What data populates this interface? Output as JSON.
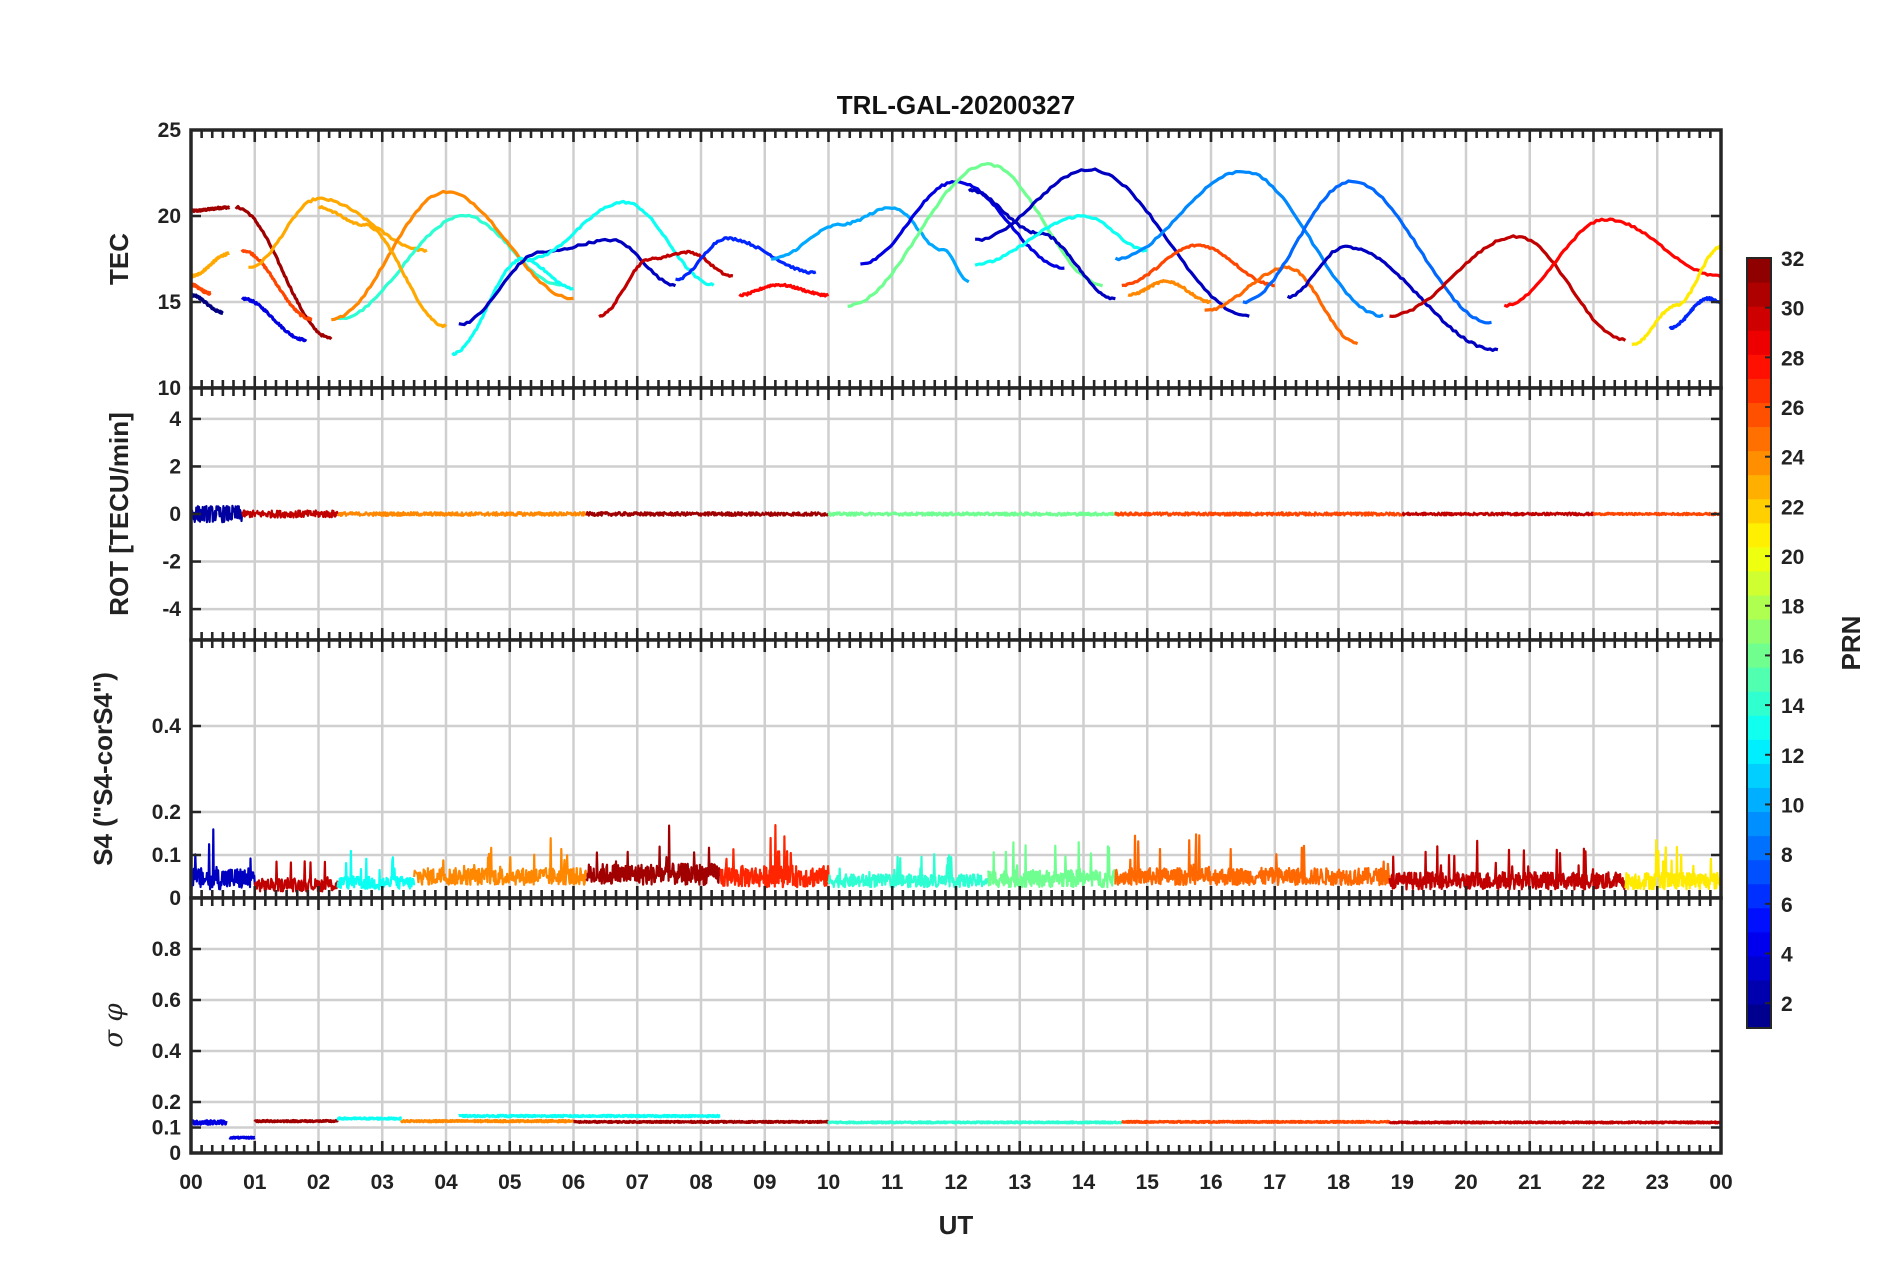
{
  "chart_data": {
    "type": "line",
    "title": "TRL-GAL-20200327",
    "xlabel": "UT",
    "x_ticks": [
      "00",
      "01",
      "02",
      "03",
      "04",
      "05",
      "06",
      "07",
      "08",
      "09",
      "10",
      "11",
      "12",
      "13",
      "14",
      "15",
      "16",
      "17",
      "18",
      "19",
      "20",
      "21",
      "22",
      "23",
      "00"
    ],
    "xlim": [
      0,
      24
    ],
    "grid": true,
    "colorbar": {
      "label": "PRN",
      "range": [
        1,
        32
      ],
      "ticks": [
        "2",
        "4",
        "6",
        "8",
        "10",
        "12",
        "14",
        "16",
        "18",
        "20",
        "22",
        "24",
        "26",
        "28",
        "30",
        "32"
      ],
      "colormap": "jet"
    },
    "panels": [
      {
        "name": "TEC",
        "ylabel": "TEC",
        "ylim": [
          10,
          25
        ],
        "y_ticks": [
          "10",
          "15",
          "20",
          "25"
        ],
        "style": "arc",
        "series": [
          {
            "prn": 31,
            "x": [
              0.0,
              0.6
            ],
            "y": [
              20.3,
              20.5
            ]
          },
          {
            "prn": 1,
            "x": [
              0.0,
              0.5
            ],
            "y": [
              15.4,
              14.4
            ]
          },
          {
            "prn": 26,
            "x": [
              0.0,
              0.3
            ],
            "y": [
              16.0,
              15.5
            ]
          },
          {
            "prn": 23,
            "x": [
              0.0,
              0.6
            ],
            "y": [
              16.5,
              17.8
            ]
          },
          {
            "prn": 4,
            "x": [
              0.8,
              1.8
            ],
            "y": [
              15.2,
              12.8
            ]
          },
          {
            "prn": 31,
            "x": [
              0.7,
              2.2
            ],
            "y": [
              20.5,
              12.9
            ]
          },
          {
            "prn": 26,
            "x": [
              0.8,
              1.9
            ],
            "y": [
              18.0,
              14.0
            ]
          },
          {
            "prn": 23,
            "x": [
              0.9,
              2.0,
              3.7
            ],
            "y": [
              17.0,
              21.0,
              18.0
            ]
          },
          {
            "prn": 14,
            "x": [
              2.3,
              4.3,
              5.8
            ],
            "y": [
              14.0,
              20.0,
              16.0
            ]
          },
          {
            "prn": 24,
            "x": [
              2.2,
              4.0,
              6.0
            ],
            "y": [
              14.0,
              21.4,
              15.2
            ]
          },
          {
            "prn": 23,
            "x": [
              2.0,
              2.7,
              4.0
            ],
            "y": [
              20.5,
              19.5,
              13.6
            ]
          },
          {
            "prn": 13,
            "x": [
              4.1,
              5.2,
              6.0
            ],
            "y": [
              12.0,
              17.5,
              15.8
            ]
          },
          {
            "prn": 3,
            "x": [
              4.2,
              5.5,
              6.6,
              7.6
            ],
            "y": [
              13.7,
              17.9,
              18.6,
              16.0
            ]
          },
          {
            "prn": 13,
            "x": [
              5.3,
              6.8,
              8.2
            ],
            "y": [
              17.5,
              20.8,
              16.0
            ]
          },
          {
            "prn": 30,
            "x": [
              6.4,
              7.2,
              7.8,
              8.5
            ],
            "y": [
              14.2,
              17.5,
              17.9,
              16.5
            ]
          },
          {
            "prn": 6,
            "x": [
              7.6,
              8.4,
              9.8
            ],
            "y": [
              16.3,
              18.7,
              16.7
            ]
          },
          {
            "prn": 28,
            "x": [
              8.6,
              9.2,
              10.0
            ],
            "y": [
              15.4,
              16.0,
              15.4
            ]
          },
          {
            "prn": 10,
            "x": [
              9.1,
              10.2,
              11.0,
              11.8,
              12.2
            ],
            "y": [
              17.5,
              19.5,
              20.5,
              18.0,
              16.2
            ]
          },
          {
            "prn": 4,
            "x": [
              10.5,
              12.0,
              13.7
            ],
            "y": [
              17.2,
              22.0,
              17.0
            ]
          },
          {
            "prn": 16,
            "x": [
              10.3,
              12.5,
              14.3
            ],
            "y": [
              14.8,
              23.0,
              16.0
            ]
          },
          {
            "prn": 3,
            "x": [
              12.3,
              14.1,
              16.6
            ],
            "y": [
              18.6,
              22.7,
              14.2
            ]
          },
          {
            "prn": 3,
            "x": [
              12.2,
              13.3,
              14.5
            ],
            "y": [
              21.5,
              19.0,
              15.2
            ]
          },
          {
            "prn": 13,
            "x": [
              12.3,
              14.0,
              15.0
            ],
            "y": [
              17.2,
              20.0,
              18.0
            ]
          },
          {
            "prn": 9,
            "x": [
              14.5,
              16.5,
              18.7
            ],
            "y": [
              17.5,
              22.6,
              14.2
            ]
          },
          {
            "prn": 26,
            "x": [
              14.6,
              15.8,
              17.0
            ],
            "y": [
              16.0,
              18.3,
              16.0
            ]
          },
          {
            "prn": 24,
            "x": [
              14.7,
              15.3,
              16.0
            ],
            "y": [
              15.4,
              16.2,
              15.0
            ]
          },
          {
            "prn": 25,
            "x": [
              15.9,
              17.2,
              18.3
            ],
            "y": [
              14.5,
              17.0,
              12.6
            ]
          },
          {
            "prn": 8,
            "x": [
              16.5,
              18.2,
              20.4
            ],
            "y": [
              15.0,
              22.0,
              13.8
            ]
          },
          {
            "prn": 3,
            "x": [
              17.2,
              18.1,
              20.5
            ],
            "y": [
              15.3,
              18.2,
              12.2
            ]
          },
          {
            "prn": 30,
            "x": [
              18.8,
              20.8,
              22.5
            ],
            "y": [
              14.2,
              18.8,
              12.8
            ]
          },
          {
            "prn": 28,
            "x": [
              20.6,
              22.2,
              24.0
            ],
            "y": [
              14.8,
              19.8,
              16.5
            ]
          },
          {
            "prn": 21,
            "x": [
              22.6,
              23.3,
              24.0
            ],
            "y": [
              12.5,
              14.8,
              18.2
            ]
          },
          {
            "prn": 6,
            "x": [
              23.2,
              23.8,
              24.0
            ],
            "y": [
              13.5,
              15.2,
              15.0
            ]
          }
        ]
      },
      {
        "name": "ROT",
        "ylabel": "ROT [TECU/min]",
        "ylim": [
          -5.3,
          5.3
        ],
        "y_ticks": [
          "-4",
          "-2",
          "0",
          "2",
          "4"
        ],
        "style": "noise",
        "segments": [
          {
            "prn": 2,
            "x": [
              0.0,
              0.8
            ],
            "amp": 0.35
          },
          {
            "prn": 30,
            "x": [
              0.8,
              2.3
            ],
            "amp": 0.15
          },
          {
            "prn": 24,
            "x": [
              2.3,
              6.2
            ],
            "amp": 0.08
          },
          {
            "prn": 31,
            "x": [
              6.2,
              10.0
            ],
            "amp": 0.08
          },
          {
            "prn": 16,
            "x": [
              10.0,
              14.5
            ],
            "amp": 0.07
          },
          {
            "prn": 26,
            "x": [
              14.5,
              19.0
            ],
            "amp": 0.07
          },
          {
            "prn": 30,
            "x": [
              19.0,
              22.0
            ],
            "amp": 0.06
          },
          {
            "prn": 26,
            "x": [
              22.0,
              24.0
            ],
            "amp": 0.05
          }
        ]
      },
      {
        "name": "S4",
        "ylabel": "S4 (\"S4-corS4\")",
        "ylim": [
          0,
          0.6
        ],
        "y_ticks": [
          "0",
          "0.1",
          "0.2",
          "0.4"
        ],
        "style": "noise-positive",
        "segments": [
          {
            "prn": 3,
            "x": [
              0.0,
              1.0
            ],
            "base": 0.045,
            "amp": 0.05
          },
          {
            "prn": 30,
            "x": [
              1.0,
              2.3
            ],
            "base": 0.03,
            "amp": 0.03
          },
          {
            "prn": 13,
            "x": [
              2.3,
              3.5
            ],
            "base": 0.035,
            "amp": 0.03
          },
          {
            "prn": 24,
            "x": [
              3.5,
              6.2
            ],
            "base": 0.05,
            "amp": 0.04
          },
          {
            "prn": 31,
            "x": [
              6.2,
              8.3
            ],
            "base": 0.055,
            "amp": 0.05
          },
          {
            "prn": 27,
            "x": [
              8.3,
              10.0
            ],
            "base": 0.05,
            "amp": 0.05
          },
          {
            "prn": 14,
            "x": [
              10.0,
              12.5
            ],
            "base": 0.04,
            "amp": 0.03
          },
          {
            "prn": 16,
            "x": [
              12.5,
              14.5
            ],
            "base": 0.045,
            "amp": 0.04
          },
          {
            "prn": 25,
            "x": [
              14.5,
              18.8
            ],
            "base": 0.05,
            "amp": 0.04
          },
          {
            "prn": 30,
            "x": [
              18.8,
              22.5
            ],
            "base": 0.04,
            "amp": 0.04
          },
          {
            "prn": 21,
            "x": [
              22.5,
              24.0
            ],
            "base": 0.04,
            "amp": 0.04
          }
        ]
      },
      {
        "name": "SigmaPhi",
        "ylabel": "σ φ",
        "ylim": [
          0,
          1.0
        ],
        "y_ticks": [
          "0",
          "0.1",
          "0.2",
          "0.4",
          "0.6",
          "0.8"
        ],
        "style": "flat",
        "segments": [
          {
            "prn": 4,
            "x": [
              0.0,
              0.55
            ],
            "base": 0.12,
            "amp": 0.015
          },
          {
            "prn": 4,
            "x": [
              0.6,
              1.0
            ],
            "base": 0.06,
            "amp": 0.005
          },
          {
            "prn": 31,
            "x": [
              1.0,
              2.3
            ],
            "base": 0.125,
            "amp": 0.006
          },
          {
            "prn": 13,
            "x": [
              2.3,
              3.3
            ],
            "base": 0.135,
            "amp": 0.006
          },
          {
            "prn": 24,
            "x": [
              3.3,
              6.0
            ],
            "base": 0.125,
            "amp": 0.006
          },
          {
            "prn": 13,
            "x": [
              4.2,
              8.3
            ],
            "base": 0.145,
            "amp": 0.006
          },
          {
            "prn": 31,
            "x": [
              6.0,
              10.0
            ],
            "base": 0.122,
            "amp": 0.005
          },
          {
            "prn": 14,
            "x": [
              10.0,
              14.6
            ],
            "base": 0.12,
            "amp": 0.005
          },
          {
            "prn": 26,
            "x": [
              14.6,
              18.8
            ],
            "base": 0.122,
            "amp": 0.005
          },
          {
            "prn": 30,
            "x": [
              18.8,
              24.0
            ],
            "base": 0.12,
            "amp": 0.005
          }
        ]
      }
    ]
  }
}
